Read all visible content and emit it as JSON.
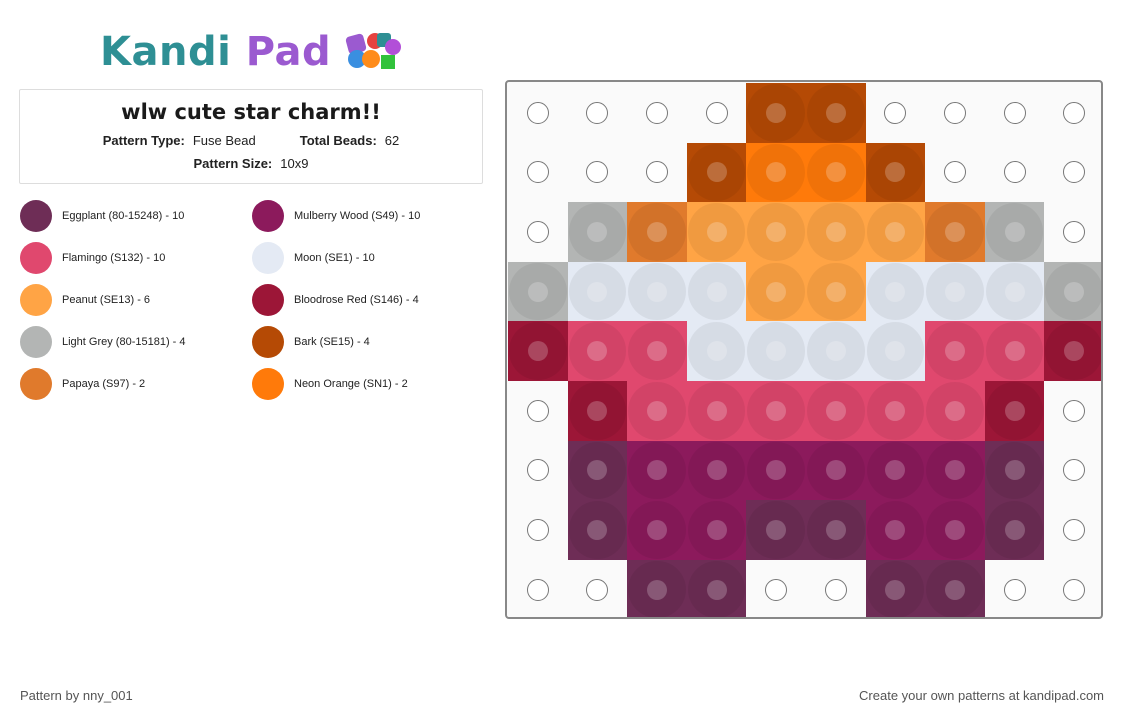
{
  "logo": {
    "part1": "Kandi",
    "part2": "Pad",
    "icon": "beads-icon"
  },
  "pattern": {
    "title": "wlw cute star charm!!",
    "type_label": "Pattern Type:",
    "type_value": "Fuse Bead",
    "beads_label": "Total Beads:",
    "beads_value": "62",
    "size_label": "Pattern Size:",
    "size_value": "10x9"
  },
  "legend": [
    {
      "label": "Eggplant (80-15248) - 10",
      "color": "#6e2d56"
    },
    {
      "label": "Mulberry Wood (S49) - 10",
      "color": "#8c1a5c"
    },
    {
      "label": "Flamingo (S132) - 10",
      "color": "#e0486e"
    },
    {
      "label": "Moon (SE1) - 10",
      "color": "#e4eaf4"
    },
    {
      "label": "Peanut (SE13) - 6",
      "color": "#ffa445"
    },
    {
      "label": "Bloodrose Red (S146) - 4",
      "color": "#9c1637"
    },
    {
      "label": "Light Grey (80-15181) - 4",
      "color": "#b3b5b4"
    },
    {
      "label": "Bark (SE15) - 4",
      "color": "#b54a05"
    },
    {
      "label": "Papaya (S97) - 2",
      "color": "#e07a2c"
    },
    {
      "label": "Neon Orange (SN1) - 2",
      "color": "#ff7a0a"
    }
  ],
  "grid": {
    "colors": {
      "E": "#6e2d56",
      "M": "#8c1a5c",
      "F": "#e0486e",
      "W": "#e4eaf4",
      "P": "#ffa445",
      "R": "#9c1637",
      "G": "#b3b5b4",
      "B": "#b54a05",
      "Y": "#e07a2c",
      "N": "#ff7a0a"
    },
    "rows": [
      "....BB....",
      "...BNNB...",
      ".GYPPPPYG.",
      "GWWWPPWWWG",
      "RFFWWWWFFR",
      ".RFFFFFFR.",
      ".EMMMMMME.",
      ".EMMEEMME.",
      "..EE..EE.."
    ]
  },
  "footer": {
    "author": "Pattern by nny_001",
    "cta": "Create your own patterns at kandipad.com"
  }
}
